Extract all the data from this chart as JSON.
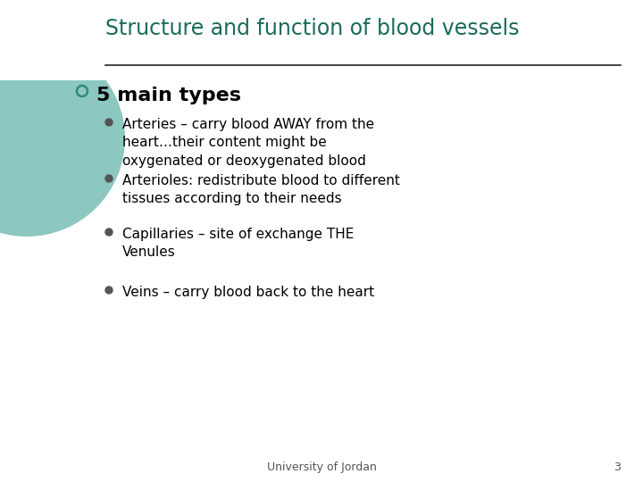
{
  "title": "Structure and function of blood vessels",
  "title_color": "#1A6B5A",
  "title_fontsize": 17,
  "bg_color": "#FFFFFF",
  "line_color": "#222222",
  "bullet_main": "5 main types",
  "bullet_main_fontsize": 16,
  "bullet_main_color": "#000000",
  "sub_bullets": [
    "Arteries – carry blood AWAY from the\nheart…their content might be\noxygenated or deoxygenated blood",
    "Arterioles: redistribute blood to different\ntissues according to their needs",
    "Capillaries – site of exchange THE\nVenules",
    "Veins – carry blood back to the heart"
  ],
  "sub_bullet_fontsize": 11,
  "sub_bullet_color": "#000000",
  "footer_text": "University of Jordan",
  "footer_page": "3",
  "footer_fontsize": 9,
  "footer_color": "#555555",
  "circle_outer_color": "#1A6B5A",
  "circle_inner_color": "#8CC8C0",
  "open_circle_color": "#2E8B7A",
  "dot_color": "#555555"
}
